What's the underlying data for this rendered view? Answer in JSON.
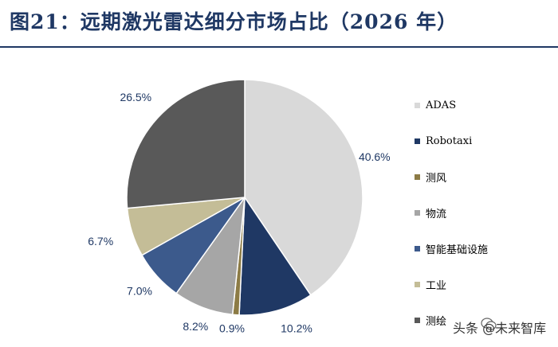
{
  "title": "图21：远期激光雷达细分市场占比（2026 年）",
  "watermark": "头条 @未来智库",
  "chart_data": {
    "type": "pie",
    "slices": [
      {
        "label": "ADAS",
        "value": 40.6,
        "display": "40.6%",
        "color": "#d9d9d9"
      },
      {
        "label": "Robotaxi",
        "value": 10.2,
        "display": "10.2%",
        "color": "#1f3864"
      },
      {
        "label": "测风",
        "value": 0.9,
        "display": "0.9%",
        "color": "#8c7b45"
      },
      {
        "label": "物流",
        "value": 8.2,
        "display": "8.2%",
        "color": "#a6a6a6"
      },
      {
        "label": "智能基础设施",
        "value": 7.0,
        "display": "7.0%",
        "color": "#3c5a8c"
      },
      {
        "label": "工业",
        "value": 6.7,
        "display": "6.7%",
        "color": "#c4bd97"
      },
      {
        "label": "测绘",
        "value": 26.5,
        "display": "26.5%",
        "color": "#595959"
      }
    ],
    "legend_position": "right"
  }
}
